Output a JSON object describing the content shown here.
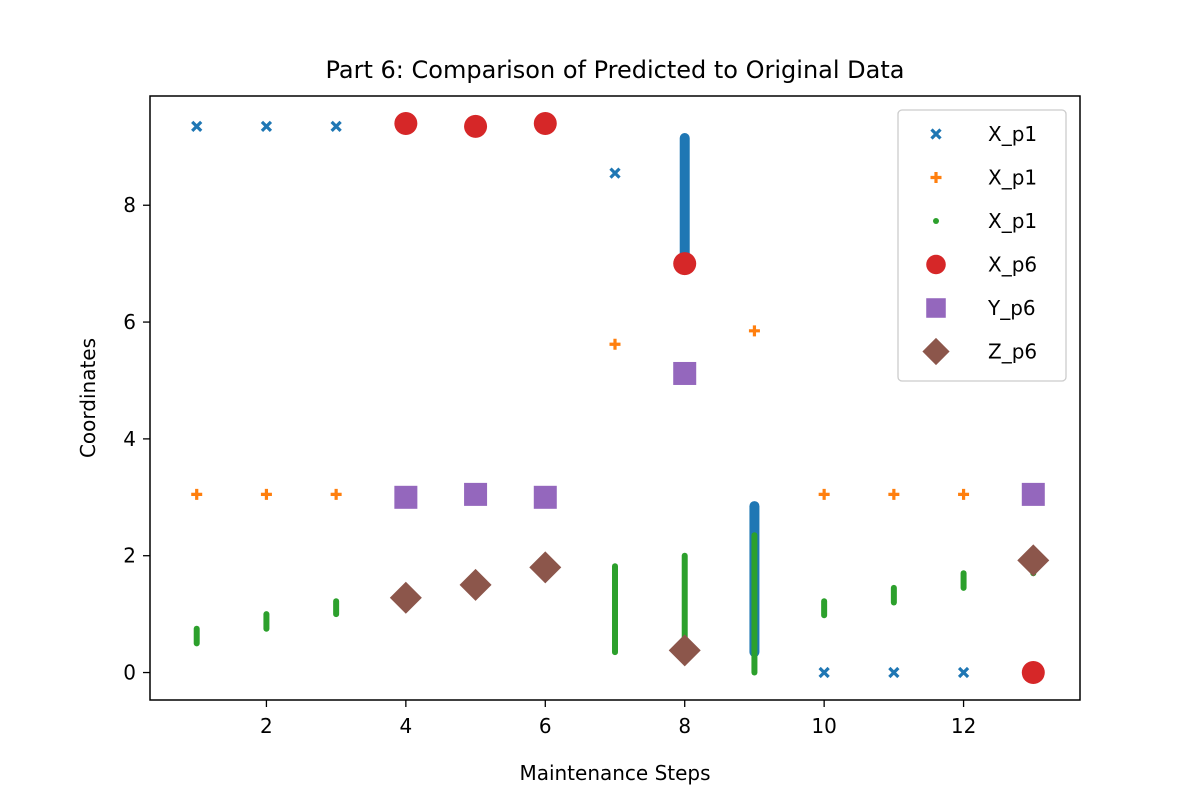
{
  "chart_data": {
    "type": "scatter",
    "title": "Part 6: Comparison of Predicted to Original Data",
    "xlabel": "Maintenance Steps",
    "ylabel": "Coordinates",
    "xlim": [
      0.33,
      13.67
    ],
    "ylim": [
      -0.47,
      9.87
    ],
    "xticks": [
      2,
      4,
      6,
      8,
      10,
      12
    ],
    "yticks": [
      0,
      2,
      4,
      6,
      8
    ],
    "grid": false,
    "legend_position": "top-right",
    "series": [
      {
        "name": "X_p1",
        "marker": "x",
        "color": "#1f77b4",
        "points": [
          [
            1,
            9.35
          ],
          [
            2,
            9.35
          ],
          [
            3,
            9.35
          ],
          [
            7,
            8.55
          ],
          [
            10,
            0.0
          ],
          [
            11,
            0.0
          ],
          [
            12,
            0.0
          ]
        ],
        "lines": [
          {
            "x": 8,
            "y0": 7.1,
            "y1": 9.15
          },
          {
            "x": 9,
            "y0": 0.35,
            "y1": 2.85
          }
        ]
      },
      {
        "name": "X_p1",
        "marker": "plus",
        "color": "#ff7f0e",
        "points": [
          [
            1,
            3.05
          ],
          [
            2,
            3.05
          ],
          [
            3,
            3.05
          ],
          [
            7,
            5.62
          ],
          [
            9,
            5.85
          ],
          [
            10,
            3.05
          ],
          [
            11,
            3.05
          ],
          [
            12,
            3.05
          ]
        ],
        "lines": []
      },
      {
        "name": "X_p1",
        "marker": "dot",
        "color": "#2ca02c",
        "points": [],
        "lines": [
          {
            "x": 1,
            "y0": 0.5,
            "y1": 0.75
          },
          {
            "x": 2,
            "y0": 0.75,
            "y1": 1.0
          },
          {
            "x": 3,
            "y0": 1.0,
            "y1": 1.22
          },
          {
            "x": 7,
            "y0": 0.35,
            "y1": 1.82
          },
          {
            "x": 8,
            "y0": 0.5,
            "y1": 2.0
          },
          {
            "x": 9,
            "y0": 0.0,
            "y1": 2.35
          },
          {
            "x": 10,
            "y0": 0.98,
            "y1": 1.22
          },
          {
            "x": 11,
            "y0": 1.2,
            "y1": 1.45
          },
          {
            "x": 12,
            "y0": 1.45,
            "y1": 1.7
          },
          {
            "x": 13,
            "y0": 1.7,
            "y1": 1.92
          }
        ]
      },
      {
        "name": "X_p6",
        "marker": "circle",
        "color": "#d62728",
        "points": [
          [
            4,
            9.4
          ],
          [
            5,
            9.35
          ],
          [
            6,
            9.4
          ],
          [
            8,
            7.0
          ],
          [
            13,
            0.0
          ]
        ],
        "lines": []
      },
      {
        "name": "Y_p6",
        "marker": "square",
        "color": "#9467bd",
        "points": [
          [
            4,
            3.0
          ],
          [
            5,
            3.05
          ],
          [
            6,
            3.0
          ],
          [
            8,
            5.12
          ],
          [
            13,
            3.05
          ]
        ],
        "lines": []
      },
      {
        "name": "Z_p6",
        "marker": "diamond",
        "color": "#8c564b",
        "points": [
          [
            4,
            1.28
          ],
          [
            5,
            1.5
          ],
          [
            6,
            1.8
          ],
          [
            8,
            0.38
          ],
          [
            13,
            1.92
          ]
        ],
        "lines": []
      }
    ]
  }
}
